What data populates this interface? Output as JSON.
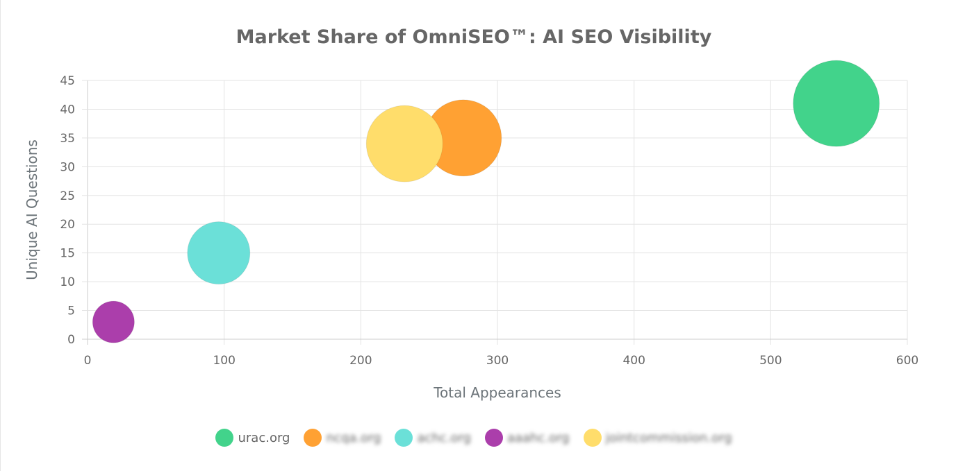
{
  "chart_data": {
    "type": "bubble",
    "title": "Market Share of OmniSEO™: AI SEO Visibility",
    "xlabel": "Total Appearances",
    "ylabel": "Unique AI Questions",
    "xlim": [
      0,
      600
    ],
    "ylim": [
      0,
      45
    ],
    "xticks": [
      "0",
      "100",
      "200",
      "300",
      "400",
      "500",
      "600"
    ],
    "yticks": [
      "0",
      "5",
      "10",
      "15",
      "20",
      "25",
      "30",
      "35",
      "40",
      "45"
    ],
    "grid": true,
    "legend": "bottom",
    "series": [
      {
        "name": "urac.org",
        "x": 548,
        "y": 41,
        "size": 62,
        "color": "#42d38b"
      },
      {
        "name": "ncqa.org",
        "x": 275,
        "y": 35,
        "size": 55,
        "color": "#ffa133"
      },
      {
        "name": "achc.org",
        "x": 96,
        "y": 15,
        "size": 45,
        "color": "#6be0d8"
      },
      {
        "name": "aaahc.org",
        "x": 19,
        "y": 3,
        "size": 30,
        "color": "#ab3eab"
      },
      {
        "name": "jointcommission.org",
        "x": 232,
        "y": 34,
        "size": 55,
        "color": "#ffdd6b"
      }
    ]
  }
}
